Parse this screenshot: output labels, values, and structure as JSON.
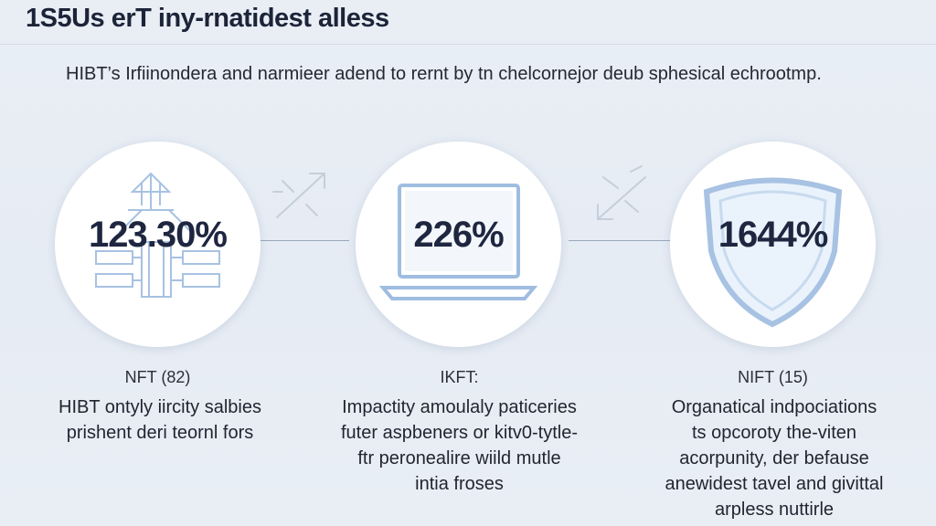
{
  "header": {
    "title": "1S5Us erT iny-rnatidest alless",
    "subtitle": "HIBT’s Irfiinondera and narmieer adend to rernt by tn chelcornejor deub sphesical echrootmp."
  },
  "stats": [
    {
      "value": "123.30%",
      "icon": "bridge-network-icon",
      "tag": "NFT (82)",
      "description": [
        "HIBT ontyly iircity salbies",
        "prishent deri teornl fors"
      ]
    },
    {
      "value": "226%",
      "icon": "laptop-icon",
      "tag": "IKFT:",
      "description": [
        "Impactity amoulaly paticeries",
        "futer aspbeners or kitv0-tytle-",
        "ftr peronealire wiild mutle",
        "intia froses"
      ]
    },
    {
      "value": "1644%",
      "icon": "shield-icon",
      "tag": "NIFT (15)",
      "description": [
        "Organatical indpociations",
        "ts opcoroty the-viten",
        "acorpunity, der befause",
        "anewidest tavel and givittal",
        "arpless nuttirle"
      ]
    }
  ],
  "colors": {
    "background": "#e8edf4",
    "circle": "#ffffff",
    "accent": "#9fbde0",
    "text": "#1f2430"
  }
}
